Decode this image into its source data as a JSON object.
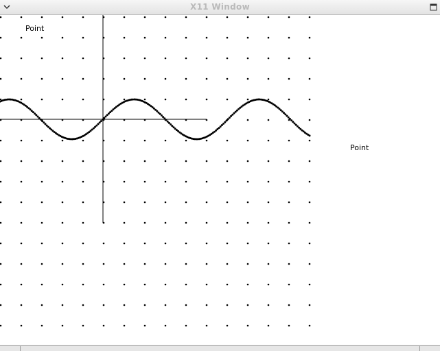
{
  "window": {
    "title": "X11 Window",
    "menu_icon": "chevron-down-icon",
    "maximize_icon": "maximize-icon"
  },
  "canvas": {
    "labels": [
      "Point",
      "Point"
    ],
    "colors": {
      "foreground": "#000000",
      "background": "#ffffff"
    }
  }
}
